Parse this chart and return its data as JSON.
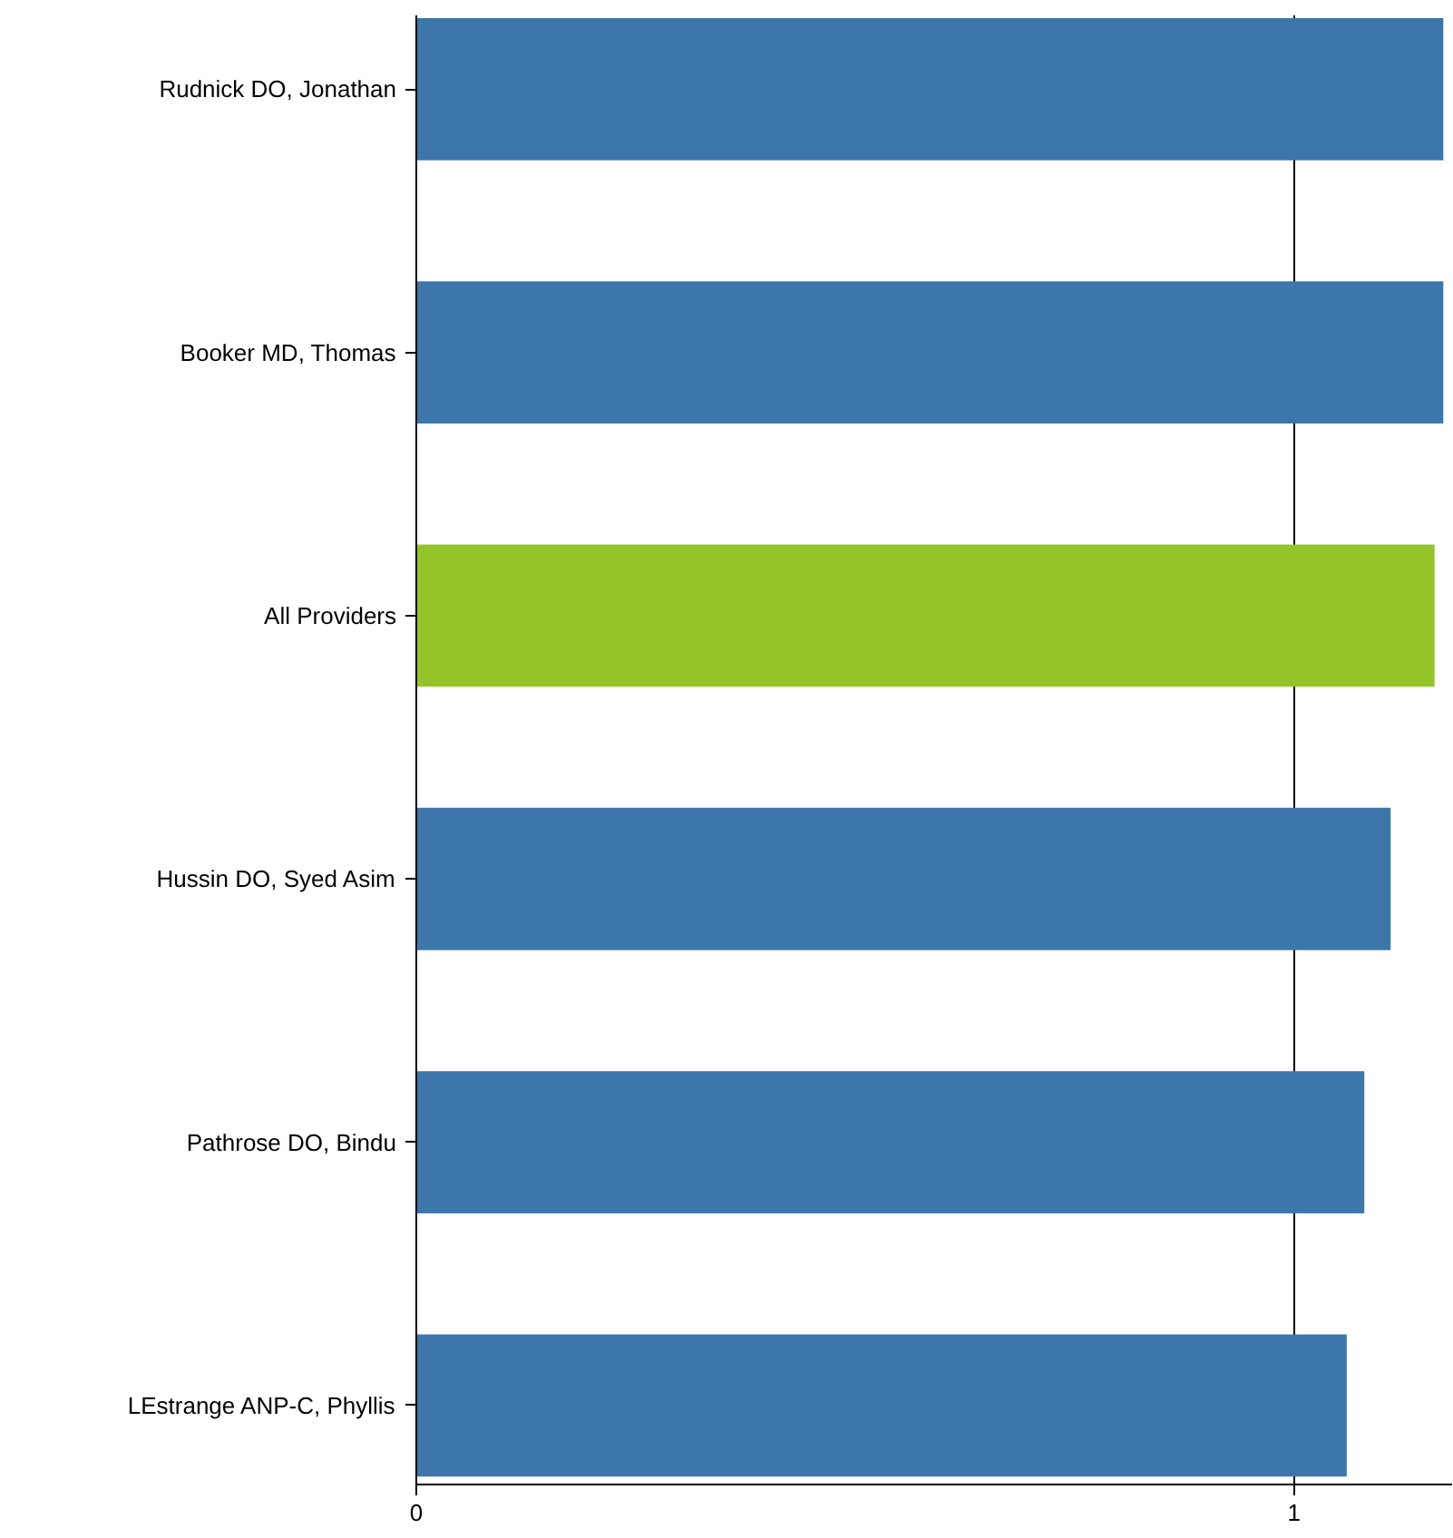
{
  "chart_data": {
    "type": "bar",
    "orientation": "horizontal",
    "categories": [
      "Rudnick DO, Jonathan",
      "Booker MD, Thomas",
      "All Providers",
      "Hussin DO, Syed Asim",
      "Pathrose DO, Bindu",
      "LEstrange ANP-C, Phyllis"
    ],
    "values": [
      1.17,
      1.17,
      1.16,
      1.11,
      1.08,
      1.06
    ],
    "colors": [
      "#3d76aa",
      "#3d76aa",
      "#93c52a",
      "#3d76aa",
      "#3d76aa",
      "#3d76aa"
    ],
    "xlim": [
      0,
      1.18
    ],
    "xticks": [
      0,
      1
    ],
    "grid": "x"
  }
}
